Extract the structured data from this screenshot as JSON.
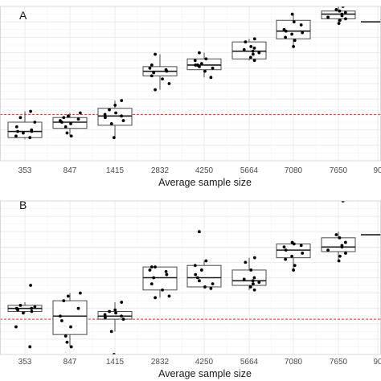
{
  "chart_data": [
    {
      "panel_label": "A",
      "type": "box",
      "xlabel": "Average sample size",
      "ylabel": "",
      "categories": [
        "353",
        "847",
        "1415",
        "2832",
        "4250",
        "5664",
        "7080",
        "7650",
        "90"
      ],
      "ylim": [
        0,
        100
      ],
      "reference_line": 30,
      "grid": true,
      "boxes": [
        {
          "q1": 15,
          "median": 19,
          "q3": 25,
          "min": 14,
          "max": 32
        },
        {
          "q1": 21,
          "median": 25,
          "q3": 28,
          "min": 16,
          "max": 31
        },
        {
          "q1": 23,
          "median": 29,
          "q3": 34,
          "min": 15,
          "max": 39
        },
        {
          "q1": 55,
          "median": 58,
          "q3": 61,
          "min": 46,
          "max": 69
        },
        {
          "q1": 59,
          "median": 62,
          "q3": 66,
          "min": 54,
          "max": 70
        },
        {
          "q1": 66,
          "median": 71,
          "q3": 77,
          "min": 65,
          "max": 79
        },
        {
          "q1": 79,
          "median": 84,
          "q3": 91,
          "min": 74,
          "max": 95
        },
        {
          "q1": 92,
          "median": 95,
          "q3": 97,
          "min": 89,
          "max": 100
        },
        {
          "q1": null,
          "median": 90,
          "q3": null,
          "min": null,
          "max": null
        }
      ],
      "points": [
        [
          15,
          16,
          18,
          19,
          19,
          20,
          22,
          25,
          28,
          32
        ],
        [
          16,
          18,
          22,
          24,
          25,
          26,
          27,
          28,
          29,
          31
        ],
        [
          15,
          24,
          26,
          28,
          29,
          30,
          31,
          33,
          36,
          39
        ],
        [
          46,
          50,
          53,
          55,
          57,
          58,
          59,
          60,
          62,
          69
        ],
        [
          54,
          58,
          60,
          61,
          62,
          62,
          63,
          65,
          66,
          70
        ],
        [
          65,
          67,
          69,
          70,
          71,
          72,
          73,
          74,
          77,
          79
        ],
        [
          74,
          78,
          80,
          82,
          83,
          84,
          85,
          88,
          90,
          95
        ],
        [
          89,
          91,
          92,
          93,
          94,
          95,
          96,
          97,
          98,
          100
        ],
        []
      ]
    },
    {
      "panel_label": "B",
      "type": "box",
      "xlabel": "Average sample size",
      "ylabel": "",
      "categories": [
        "353",
        "847",
        "1415",
        "2832",
        "4250",
        "5664",
        "7080",
        "7650",
        "90"
      ],
      "ylim": [
        0,
        100
      ],
      "reference_line": 23,
      "grid": true,
      "boxes": [
        {
          "q1": 28,
          "median": 30,
          "q3": 32,
          "min": 27,
          "max": 34
        },
        {
          "q1": 13,
          "median": 25,
          "q3": 35,
          "min": 5,
          "max": 40
        },
        {
          "q1": 23,
          "median": 25,
          "q3": 28,
          "min": 15,
          "max": 34
        },
        {
          "q1": 42,
          "median": 50,
          "q3": 57,
          "min": 37,
          "max": 57
        },
        {
          "q1": 44,
          "median": 50,
          "q3": 58,
          "min": 43,
          "max": 61
        },
        {
          "q1": 45,
          "median": 48,
          "q3": 55,
          "min": 42,
          "max": 63
        },
        {
          "q1": 63,
          "median": 68,
          "q3": 72,
          "min": 55,
          "max": 73
        },
        {
          "q1": 67,
          "median": 70,
          "q3": 76,
          "min": 61,
          "max": 80
        },
        {
          "q1": null,
          "median": 78,
          "q3": null,
          "min": null,
          "max": null
        }
      ],
      "points": [
        [
          5,
          18,
          27,
          28,
          29,
          30,
          30,
          31,
          32,
          45
        ],
        [
          5,
          8,
          12,
          18,
          22,
          25,
          30,
          35,
          38,
          40
        ],
        [
          0,
          15,
          23,
          24,
          25,
          26,
          27,
          28,
          29,
          34
        ],
        [
          37,
          38,
          42,
          46,
          50,
          52,
          54,
          55,
          57,
          57
        ],
        [
          43,
          44,
          46,
          48,
          50,
          52,
          55,
          58,
          61,
          80
        ],
        [
          42,
          44,
          46,
          47,
          48,
          49,
          50,
          55,
          60,
          63
        ],
        [
          55,
          58,
          62,
          64,
          66,
          68,
          70,
          71,
          72,
          73
        ],
        [
          61,
          64,
          66,
          68,
          70,
          71,
          73,
          76,
          78,
          100
        ],
        []
      ]
    }
  ]
}
